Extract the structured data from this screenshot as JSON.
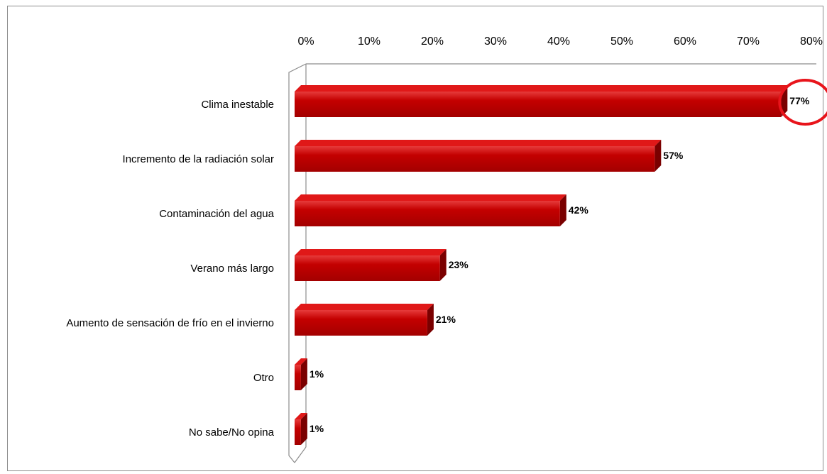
{
  "chart_data": {
    "type": "bar",
    "orientation": "horizontal",
    "title": "",
    "xlabel": "",
    "ylabel": "",
    "xlim": [
      0,
      80
    ],
    "x_ticks": [
      "0%",
      "10%",
      "20%",
      "30%",
      "40%",
      "50%",
      "60%",
      "70%",
      "80%"
    ],
    "tick_values": [
      0,
      10,
      20,
      30,
      40,
      50,
      60,
      70,
      80
    ],
    "grid": false,
    "legend": "none",
    "axis_position": "top",
    "categories": [
      "Clima inestable",
      "Incremento de la radiación solar",
      "Contaminación del agua",
      "Verano más largo",
      "Aumento de sensación de frío en el invierno",
      "Otro",
      "No sabe/No opina"
    ],
    "values": [
      77,
      57,
      42,
      23,
      21,
      1,
      1
    ],
    "data_labels": [
      "77%",
      "57%",
      "42%",
      "23%",
      "21%",
      "1%",
      "1%"
    ],
    "highlight": {
      "category": "Clima inestable",
      "shape": "circle",
      "color": "#e8141b"
    },
    "colors": {
      "bar_face": "#c00000",
      "bar_top": "#e01818",
      "bar_side": "#7a0000",
      "bar_highlight": "#e63b3b",
      "axis": "#8c8c8c"
    }
  }
}
